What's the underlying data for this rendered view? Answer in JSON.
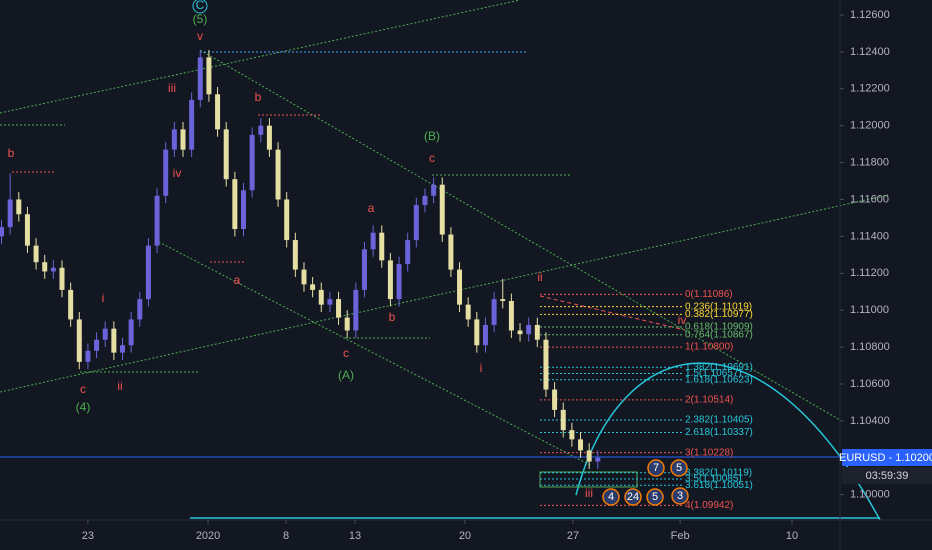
{
  "chart_data": {
    "type": "candlestick",
    "symbol_label": "EURUSD - 1.10200",
    "countdown": "03:59:39",
    "up_color": "#6b63d9",
    "down_color": "#e6dfa4",
    "x": [
      -4,
      -3.6,
      -3.2,
      -2.8,
      -2.4,
      -2,
      -1.6,
      -1.2,
      -0.8,
      -0.4,
      0,
      0.4,
      0.8,
      1.2,
      1.6,
      2,
      2.4,
      2.8,
      3.2,
      3.6,
      4,
      4.4,
      4.8,
      5.2,
      5.6,
      6,
      6.4,
      6.8,
      7.2,
      7.6,
      8,
      8.4,
      8.8,
      9.2,
      9.6,
      10,
      10.4,
      10.8,
      11.2,
      11.6,
      12,
      12.4,
      12.8,
      13.2,
      13.6,
      14,
      14.4,
      14.8,
      15.2,
      15.6,
      16,
      16.4,
      16.8,
      17.2,
      17.6,
      18,
      18.4,
      18.8,
      19.2,
      19.6,
      20,
      20.4,
      20.8,
      21.2,
      21.6,
      22,
      22.4,
      22.8,
      23.2,
      23.6
    ],
    "open": [
      1.114,
      1.1145,
      1.116,
      1.1152,
      1.1135,
      1.1126,
      1.1121,
      1.1123,
      1.1111,
      1.1095,
      1.1072,
      1.1078,
      1.1084,
      1.109,
      1.1077,
      1.1081,
      1.1095,
      1.1106,
      1.1135,
      1.1162,
      1.1187,
      1.1198,
      1.1187,
      1.1214,
      1.1237,
      1.1217,
      1.1198,
      1.1171,
      1.1144,
      1.1165,
      1.1195,
      1.12,
      1.1187,
      1.116,
      1.1138,
      1.1122,
      1.1114,
      1.1111,
      1.1103,
      1.1106,
      1.1096,
      1.1089,
      1.1111,
      1.1133,
      1.1142,
      1.1127,
      1.1106,
      1.1125,
      1.1138,
      1.1157,
      1.1162,
      1.1168,
      1.1141,
      1.1122,
      1.1103,
      1.1095,
      1.1081,
      1.1092,
      1.1106,
      1.1105,
      1.1089,
      1.1087,
      1.1092,
      1.1084,
      1.1057,
      1.1046,
      1.1035,
      1.103,
      1.1024,
      1.1018
    ],
    "high": [
      1.1149,
      1.1174,
      1.1164,
      1.1156,
      1.1139,
      1.113,
      1.1127,
      1.1127,
      1.1115,
      1.1099,
      1.1082,
      1.1088,
      1.1094,
      1.1094,
      1.1085,
      1.1099,
      1.111,
      1.1139,
      1.1166,
      1.1191,
      1.1202,
      1.1202,
      1.1218,
      1.1241,
      1.1241,
      1.1221,
      1.1202,
      1.1175,
      1.1169,
      1.1199,
      1.1204,
      1.1204,
      1.1191,
      1.1164,
      1.1142,
      1.1126,
      1.1118,
      1.1115,
      1.111,
      1.111,
      1.11,
      1.1115,
      1.1137,
      1.1146,
      1.1146,
      1.1131,
      1.1129,
      1.1142,
      1.1161,
      1.1166,
      1.1172,
      1.1172,
      1.1145,
      1.1126,
      1.1107,
      1.1099,
      1.1096,
      1.111,
      1.1117,
      1.1109,
      1.1093,
      1.1096,
      1.1096,
      1.1088,
      1.1061,
      1.105,
      1.1039,
      1.1034,
      1.1028,
      1.1024
    ],
    "low": [
      1.1136,
      1.1141,
      1.1148,
      1.1131,
      1.1122,
      1.1117,
      1.1117,
      1.1107,
      1.1091,
      1.1068,
      1.1068,
      1.1074,
      1.108,
      1.1073,
      1.1073,
      1.1077,
      1.1091,
      1.1102,
      1.1131,
      1.1158,
      1.1183,
      1.1183,
      1.1183,
      1.121,
      1.1213,
      1.1194,
      1.1167,
      1.114,
      1.114,
      1.1161,
      1.1191,
      1.1183,
      1.1156,
      1.1134,
      1.1118,
      1.111,
      1.1107,
      1.1099,
      1.1099,
      1.1092,
      1.1085,
      1.1085,
      1.1107,
      1.1129,
      1.1123,
      1.1102,
      1.1102,
      1.1121,
      1.1134,
      1.1153,
      1.1158,
      1.1137,
      1.1118,
      1.1099,
      1.1091,
      1.1077,
      1.1077,
      1.1088,
      1.1101,
      1.1085,
      1.1083,
      1.1083,
      1.108,
      1.1053,
      1.1042,
      1.1031,
      1.1026,
      1.102,
      1.1014,
      1.1014
    ],
    "close": [
      1.1145,
      1.116,
      1.1152,
      1.1135,
      1.1126,
      1.1121,
      1.1123,
      1.1111,
      1.1095,
      1.1072,
      1.1078,
      1.1084,
      1.109,
      1.1077,
      1.1081,
      1.1095,
      1.1106,
      1.1135,
      1.1162,
      1.1187,
      1.1198,
      1.1187,
      1.1214,
      1.1237,
      1.1217,
      1.1198,
      1.1171,
      1.1144,
      1.1165,
      1.1195,
      1.12,
      1.1187,
      1.116,
      1.1138,
      1.1122,
      1.1114,
      1.1111,
      1.1103,
      1.1106,
      1.1096,
      1.1089,
      1.1111,
      1.1133,
      1.1142,
      1.1127,
      1.1106,
      1.1125,
      1.1138,
      1.1157,
      1.1162,
      1.1168,
      1.1141,
      1.1122,
      1.1103,
      1.1095,
      1.1081,
      1.1092,
      1.1106,
      1.1105,
      1.1089,
      1.1087,
      1.1092,
      1.1084,
      1.1057,
      1.1046,
      1.1035,
      1.103,
      1.1024,
      1.1018,
      1.102
    ],
    "xlim": [
      -4.07,
      34.81
    ],
    "xticks": [
      {
        "value": 0,
        "label": "23"
      },
      {
        "value": 5.56,
        "label": "2020"
      },
      {
        "value": 9.17,
        "label": "8"
      },
      {
        "value": 12.36,
        "label": "13"
      },
      {
        "value": 17.45,
        "label": "20"
      },
      {
        "value": 22.45,
        "label": "27"
      },
      {
        "value": 27.41,
        "label": "Feb"
      },
      {
        "value": 32.59,
        "label": "10"
      }
    ],
    "ylim": [
      1.09863,
      1.12681
    ],
    "yticks": [
      {
        "value": 1.126,
        "label": "1.12600"
      },
      {
        "value": 1.124,
        "label": "1.12400"
      },
      {
        "value": 1.122,
        "label": "1.12200"
      },
      {
        "value": 1.12,
        "label": "1.12000"
      },
      {
        "value": 1.118,
        "label": "1.11800"
      },
      {
        "value": 1.116,
        "label": "1.11600"
      },
      {
        "value": 1.114,
        "label": "1.11400"
      },
      {
        "value": 1.112,
        "label": "1.11200"
      },
      {
        "value": 1.11,
        "label": "1.11000"
      },
      {
        "value": 1.108,
        "label": "1.10800"
      },
      {
        "value": 1.106,
        "label": "1.10600"
      },
      {
        "value": 1.104,
        "label": "1.10400"
      },
      {
        "value": 1.1,
        "label": "1.10000"
      }
    ],
    "wave_labels": [
      {
        "text": "C",
        "color": "#26c6da"
      },
      {
        "text": "(5)",
        "color": "#4caf50"
      },
      {
        "text": "v",
        "color": "#ef5350"
      },
      {
        "text": "iii",
        "color": "#ef5350"
      },
      {
        "text": "iv",
        "color": "#ef5350"
      },
      {
        "text": "b",
        "color": "#ef5350"
      },
      {
        "text": "b",
        "color": "#ef5350"
      },
      {
        "text": "a",
        "color": "#ef5350"
      },
      {
        "text": "i",
        "color": "#ef5350"
      },
      {
        "text": "ii",
        "color": "#ef5350"
      },
      {
        "text": "c",
        "color": "#ef5350"
      },
      {
        "text": "(4)",
        "color": "#4caf50"
      },
      {
        "text": "(B)",
        "color": "#4caf50"
      },
      {
        "text": "c",
        "color": "#ef5350"
      },
      {
        "text": "a",
        "color": "#ef5350"
      },
      {
        "text": "b",
        "color": "#ef5350"
      },
      {
        "text": "c",
        "color": "#ef5350"
      },
      {
        "text": "(A)",
        "color": "#4caf50"
      },
      {
        "text": "ii",
        "color": "#ef5350"
      },
      {
        "text": "i",
        "color": "#ef5350"
      },
      {
        "text": "iii",
        "color": "#ef5350"
      },
      {
        "text": "iv",
        "color": "#ef5350"
      }
    ],
    "fib_levels": [
      {
        "label": "0(1.11086)",
        "value": 1.11086,
        "color": "#ef5350"
      },
      {
        "label": "0.236(1.11019)",
        "value": 1.11019,
        "color": "#fdd835"
      },
      {
        "label": "0.382(1.10977)",
        "value": 1.10977,
        "color": "#fdd835"
      },
      {
        "label": "0.618(1.10909)",
        "value": 1.10909,
        "color": "#66bb6a"
      },
      {
        "label": "0.764(1.10867)",
        "value": 1.10867,
        "color": "#66bb6a"
      },
      {
        "label": "1(1.10800)",
        "value": 1.108,
        "color": "#ef5350"
      },
      {
        "label": "1.382(1.10691)",
        "value": 1.10691,
        "color": "#26c6da"
      },
      {
        "label": "1.5(1.10657)",
        "value": 1.10657,
        "color": "#26c6da"
      },
      {
        "label": "1.618(1.10623)",
        "value": 1.10623,
        "color": "#26c6da"
      },
      {
        "label": "2(1.10514)",
        "value": 1.10514,
        "color": "#ef5350"
      },
      {
        "label": "2.382(1.10405)",
        "value": 1.10405,
        "color": "#26c6da"
      },
      {
        "label": "2.618(1.10337)",
        "value": 1.10337,
        "color": "#26c6da"
      },
      {
        "label": "3(1.10228)",
        "value": 1.10228,
        "color": "#ef5350"
      },
      {
        "label": "3.382(1.10119)",
        "value": 1.10119,
        "color": "#26c6da"
      },
      {
        "label": "3.5(1.10085)",
        "value": 1.10085,
        "color": "#26c6da"
      },
      {
        "label": "3.618(1.10051)",
        "value": 1.10051,
        "color": "#26c6da"
      },
      {
        "label": "4(1.09942)",
        "value": 1.09942,
        "color": "#ef5350"
      }
    ],
    "event_markers": [
      "7",
      "5",
      "4",
      "24",
      "5",
      "3"
    ]
  }
}
